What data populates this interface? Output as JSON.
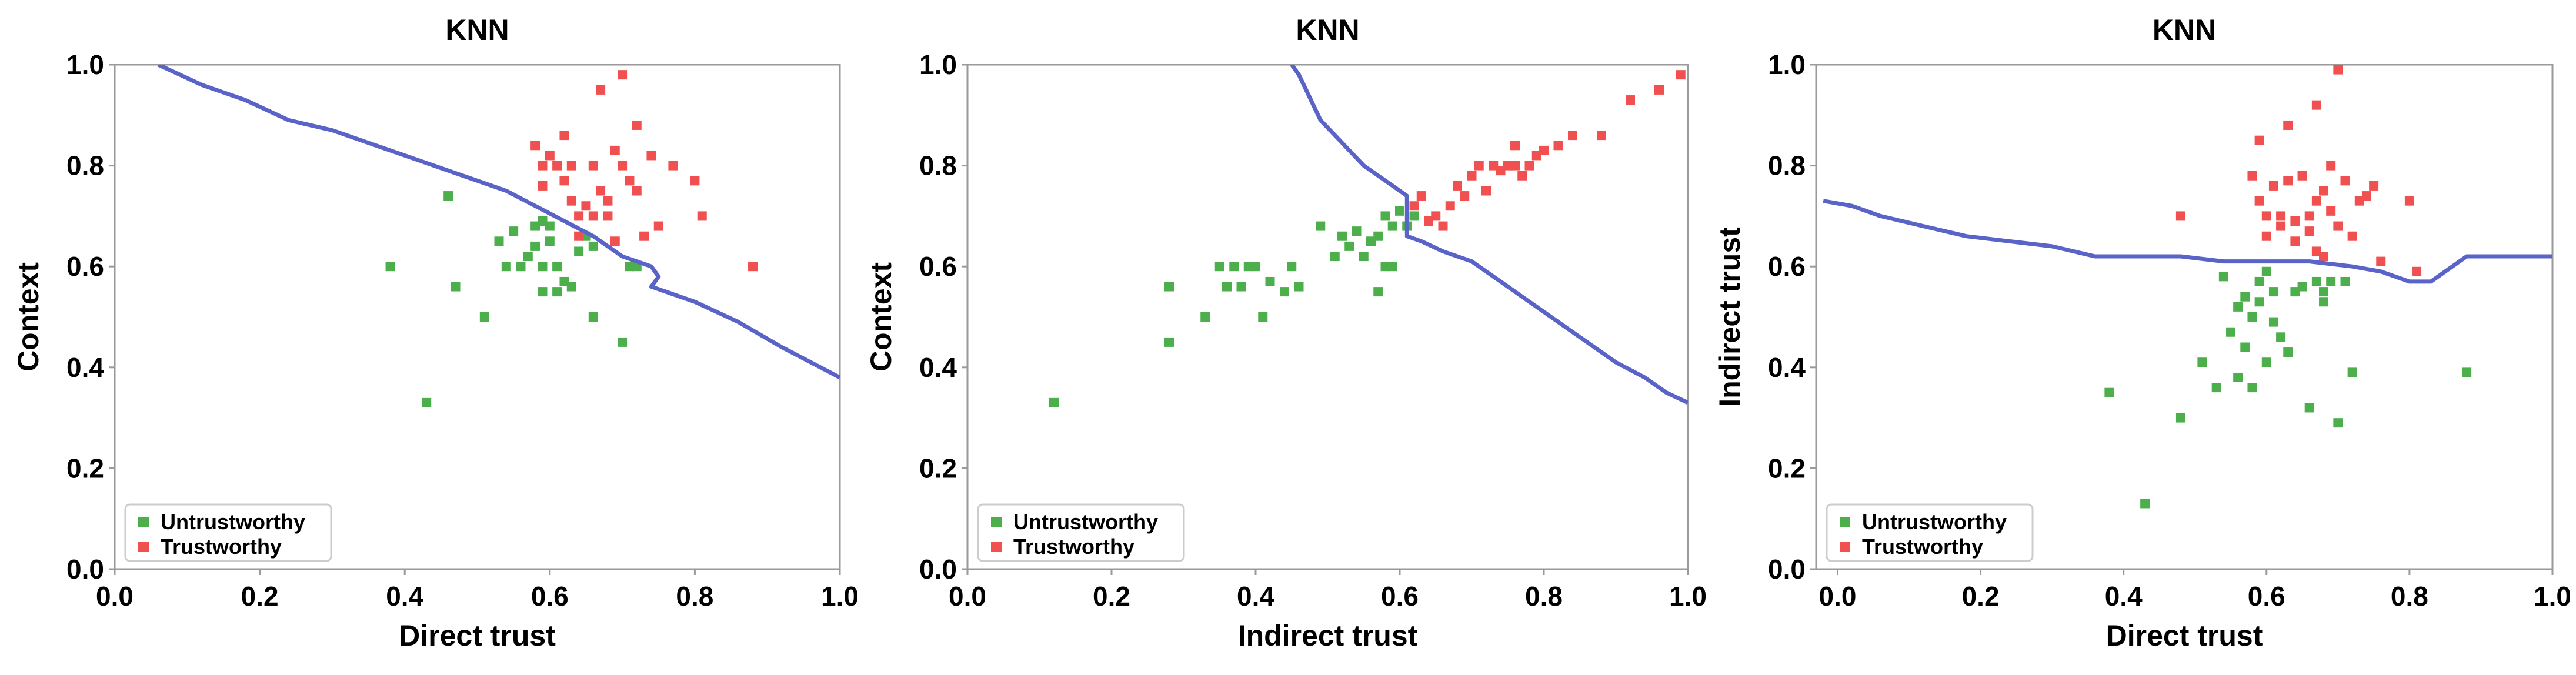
{
  "chart_data": [
    {
      "type": "scatter",
      "title": "KNN",
      "xlabel": "Direct trust",
      "ylabel": "Context",
      "xlim": [
        0.0,
        1.0
      ],
      "ylim": [
        0.0,
        1.0
      ],
      "xticks": [
        "0.0",
        "0.2",
        "0.4",
        "0.6",
        "0.8",
        "1.0"
      ],
      "yticks": [
        "0.0",
        "0.2",
        "0.4",
        "0.6",
        "0.8",
        "1.0"
      ],
      "legend": {
        "position": "bottom-left",
        "entries": [
          "Untrustworthy",
          "Trustworthy"
        ]
      },
      "series": [
        {
          "name": "Untrustworthy",
          "color": "#4caf4c",
          "points": [
            [
              0.38,
              0.6
            ],
            [
              0.43,
              0.33
            ],
            [
              0.46,
              0.74
            ],
            [
              0.47,
              0.56
            ],
            [
              0.51,
              0.5
            ],
            [
              0.53,
              0.65
            ],
            [
              0.54,
              0.6
            ],
            [
              0.55,
              0.67
            ],
            [
              0.56,
              0.6
            ],
            [
              0.57,
              0.62
            ],
            [
              0.58,
              0.68
            ],
            [
              0.58,
              0.64
            ],
            [
              0.59,
              0.69
            ],
            [
              0.59,
              0.6
            ],
            [
              0.59,
              0.55
            ],
            [
              0.6,
              0.68
            ],
            [
              0.6,
              0.65
            ],
            [
              0.61,
              0.6
            ],
            [
              0.61,
              0.55
            ],
            [
              0.62,
              0.57
            ],
            [
              0.63,
              0.56
            ],
            [
              0.64,
              0.63
            ],
            [
              0.65,
              0.66
            ],
            [
              0.66,
              0.64
            ],
            [
              0.66,
              0.5
            ],
            [
              0.7,
              0.45
            ],
            [
              0.71,
              0.6
            ],
            [
              0.72,
              0.6
            ]
          ]
        },
        {
          "name": "Trustworthy",
          "color": "#f05050",
          "points": [
            [
              0.58,
              0.84
            ],
            [
              0.59,
              0.8
            ],
            [
              0.59,
              0.76
            ],
            [
              0.6,
              0.82
            ],
            [
              0.61,
              0.8
            ],
            [
              0.62,
              0.86
            ],
            [
              0.62,
              0.77
            ],
            [
              0.63,
              0.8
            ],
            [
              0.63,
              0.73
            ],
            [
              0.64,
              0.7
            ],
            [
              0.64,
              0.66
            ],
            [
              0.65,
              0.72
            ],
            [
              0.66,
              0.7
            ],
            [
              0.66,
              0.8
            ],
            [
              0.67,
              0.95
            ],
            [
              0.67,
              0.75
            ],
            [
              0.68,
              0.73
            ],
            [
              0.68,
              0.7
            ],
            [
              0.69,
              0.83
            ],
            [
              0.69,
              0.65
            ],
            [
              0.7,
              0.98
            ],
            [
              0.7,
              0.8
            ],
            [
              0.71,
              0.77
            ],
            [
              0.72,
              0.88
            ],
            [
              0.72,
              0.75
            ],
            [
              0.73,
              0.66
            ],
            [
              0.74,
              0.82
            ],
            [
              0.75,
              0.68
            ],
            [
              0.77,
              0.8
            ],
            [
              0.8,
              0.77
            ],
            [
              0.81,
              0.7
            ],
            [
              0.88,
              0.6
            ]
          ]
        },
        {
          "name": "Decision boundary",
          "color": "#5a64c8",
          "points": [
            [
              0.06,
              1.0
            ],
            [
              0.12,
              0.96
            ],
            [
              0.18,
              0.93
            ],
            [
              0.24,
              0.89
            ],
            [
              0.3,
              0.87
            ],
            [
              0.36,
              0.84
            ],
            [
              0.42,
              0.81
            ],
            [
              0.46,
              0.79
            ],
            [
              0.5,
              0.77
            ],
            [
              0.54,
              0.75
            ],
            [
              0.58,
              0.72
            ],
            [
              0.62,
              0.69
            ],
            [
              0.66,
              0.66
            ],
            [
              0.7,
              0.62
            ],
            [
              0.74,
              0.6
            ],
            [
              0.75,
              0.58
            ],
            [
              0.74,
              0.56
            ],
            [
              0.8,
              0.53
            ],
            [
              0.86,
              0.49
            ],
            [
              0.92,
              0.44
            ],
            [
              1.0,
              0.38
            ]
          ]
        }
      ]
    },
    {
      "type": "scatter",
      "title": "KNN",
      "xlabel": "Indirect trust",
      "ylabel": "Context",
      "xlim": [
        0.0,
        1.0
      ],
      "ylim": [
        0.0,
        1.0
      ],
      "xticks": [
        "0.0",
        "0.2",
        "0.4",
        "0.6",
        "0.8",
        "1.0"
      ],
      "yticks": [
        "0.0",
        "0.2",
        "0.4",
        "0.6",
        "0.8",
        "1.0"
      ],
      "legend": {
        "position": "bottom-left",
        "entries": [
          "Untrustworthy",
          "Trustworthy"
        ]
      },
      "series": [
        {
          "name": "Untrustworthy",
          "color": "#4caf4c",
          "points": [
            [
              0.12,
              0.33
            ],
            [
              0.28,
              0.45
            ],
            [
              0.28,
              0.56
            ],
            [
              0.33,
              0.5
            ],
            [
              0.35,
              0.6
            ],
            [
              0.36,
              0.56
            ],
            [
              0.37,
              0.6
            ],
            [
              0.38,
              0.56
            ],
            [
              0.39,
              0.6
            ],
            [
              0.4,
              0.6
            ],
            [
              0.41,
              0.5
            ],
            [
              0.42,
              0.57
            ],
            [
              0.44,
              0.55
            ],
            [
              0.45,
              0.6
            ],
            [
              0.46,
              0.56
            ],
            [
              0.49,
              0.68
            ],
            [
              0.51,
              0.62
            ],
            [
              0.52,
              0.66
            ],
            [
              0.53,
              0.64
            ],
            [
              0.54,
              0.67
            ],
            [
              0.55,
              0.62
            ],
            [
              0.56,
              0.65
            ],
            [
              0.57,
              0.66
            ],
            [
              0.57,
              0.55
            ],
            [
              0.58,
              0.7
            ],
            [
              0.58,
              0.6
            ],
            [
              0.59,
              0.68
            ],
            [
              0.59,
              0.6
            ],
            [
              0.6,
              0.71
            ],
            [
              0.61,
              0.68
            ],
            [
              0.62,
              0.7
            ]
          ]
        },
        {
          "name": "Trustworthy",
          "color": "#f05050",
          "points": [
            [
              0.62,
              0.72
            ],
            [
              0.63,
              0.74
            ],
            [
              0.64,
              0.69
            ],
            [
              0.65,
              0.7
            ],
            [
              0.66,
              0.68
            ],
            [
              0.67,
              0.72
            ],
            [
              0.68,
              0.76
            ],
            [
              0.69,
              0.74
            ],
            [
              0.7,
              0.78
            ],
            [
              0.71,
              0.8
            ],
            [
              0.72,
              0.75
            ],
            [
              0.73,
              0.8
            ],
            [
              0.74,
              0.79
            ],
            [
              0.75,
              0.8
            ],
            [
              0.76,
              0.8
            ],
            [
              0.76,
              0.84
            ],
            [
              0.77,
              0.78
            ],
            [
              0.78,
              0.8
            ],
            [
              0.79,
              0.82
            ],
            [
              0.8,
              0.83
            ],
            [
              0.82,
              0.84
            ],
            [
              0.84,
              0.86
            ],
            [
              0.88,
              0.86
            ],
            [
              0.92,
              0.93
            ],
            [
              0.96,
              0.95
            ],
            [
              0.99,
              0.98
            ]
          ]
        },
        {
          "name": "Decision boundary",
          "color": "#5a64c8",
          "points": [
            [
              0.45,
              1.0
            ],
            [
              0.46,
              0.98
            ],
            [
              0.47,
              0.95
            ],
            [
              0.48,
              0.92
            ],
            [
              0.49,
              0.89
            ],
            [
              0.51,
              0.86
            ],
            [
              0.53,
              0.83
            ],
            [
              0.55,
              0.8
            ],
            [
              0.57,
              0.78
            ],
            [
              0.59,
              0.76
            ],
            [
              0.61,
              0.74
            ],
            [
              0.61,
              0.7
            ],
            [
              0.61,
              0.66
            ],
            [
              0.63,
              0.65
            ],
            [
              0.66,
              0.63
            ],
            [
              0.7,
              0.61
            ],
            [
              0.74,
              0.57
            ],
            [
              0.78,
              0.53
            ],
            [
              0.82,
              0.49
            ],
            [
              0.86,
              0.45
            ],
            [
              0.9,
              0.41
            ],
            [
              0.94,
              0.38
            ],
            [
              0.97,
              0.35
            ],
            [
              1.0,
              0.33
            ]
          ]
        }
      ]
    },
    {
      "type": "scatter",
      "title": "KNN",
      "xlabel": "Direct trust",
      "ylabel": "Indirect trust",
      "xlim": [
        0.0,
        1.0
      ],
      "ylim": [
        0.0,
        1.0
      ],
      "xticks": [
        "0.0",
        "0.2",
        "0.4",
        "0.6",
        "0.8",
        "1.0"
      ],
      "yticks": [
        "0.0",
        "0.2",
        "0.4",
        "0.6",
        "0.8",
        "1.0"
      ],
      "legend": {
        "position": "bottom-left",
        "entries": [
          "Untrustworthy",
          "Trustworthy"
        ]
      },
      "series": [
        {
          "name": "Untrustworthy",
          "color": "#4caf4c",
          "points": [
            [
              0.38,
              0.35
            ],
            [
              0.43,
              0.13
            ],
            [
              0.48,
              0.3
            ],
            [
              0.51,
              0.41
            ],
            [
              0.53,
              0.36
            ],
            [
              0.54,
              0.58
            ],
            [
              0.55,
              0.47
            ],
            [
              0.56,
              0.38
            ],
            [
              0.56,
              0.52
            ],
            [
              0.57,
              0.44
            ],
            [
              0.57,
              0.54
            ],
            [
              0.58,
              0.5
            ],
            [
              0.58,
              0.36
            ],
            [
              0.59,
              0.57
            ],
            [
              0.59,
              0.53
            ],
            [
              0.6,
              0.59
            ],
            [
              0.6,
              0.41
            ],
            [
              0.61,
              0.55
            ],
            [
              0.61,
              0.49
            ],
            [
              0.62,
              0.46
            ],
            [
              0.63,
              0.43
            ],
            [
              0.64,
              0.55
            ],
            [
              0.65,
              0.56
            ],
            [
              0.66,
              0.32
            ],
            [
              0.67,
              0.57
            ],
            [
              0.68,
              0.53
            ],
            [
              0.68,
              0.55
            ],
            [
              0.69,
              0.57
            ],
            [
              0.7,
              0.29
            ],
            [
              0.71,
              0.57
            ],
            [
              0.72,
              0.39
            ],
            [
              0.88,
              0.39
            ]
          ]
        },
        {
          "name": "Trustworthy",
          "color": "#f05050",
          "points": [
            [
              0.48,
              0.7
            ],
            [
              0.58,
              0.78
            ],
            [
              0.59,
              0.85
            ],
            [
              0.59,
              0.73
            ],
            [
              0.6,
              0.7
            ],
            [
              0.6,
              0.66
            ],
            [
              0.61,
              0.76
            ],
            [
              0.62,
              0.7
            ],
            [
              0.62,
              0.68
            ],
            [
              0.63,
              0.88
            ],
            [
              0.63,
              0.77
            ],
            [
              0.64,
              0.69
            ],
            [
              0.64,
              0.65
            ],
            [
              0.65,
              0.78
            ],
            [
              0.66,
              0.7
            ],
            [
              0.66,
              0.67
            ],
            [
              0.67,
              0.92
            ],
            [
              0.67,
              0.73
            ],
            [
              0.67,
              0.63
            ],
            [
              0.68,
              0.75
            ],
            [
              0.68,
              0.62
            ],
            [
              0.69,
              0.8
            ],
            [
              0.69,
              0.71
            ],
            [
              0.7,
              0.99
            ],
            [
              0.7,
              0.68
            ],
            [
              0.71,
              0.77
            ],
            [
              0.72,
              0.66
            ],
            [
              0.73,
              0.73
            ],
            [
              0.74,
              0.74
            ],
            [
              0.75,
              0.76
            ],
            [
              0.76,
              0.61
            ],
            [
              0.8,
              0.73
            ],
            [
              0.81,
              0.59
            ]
          ]
        },
        {
          "name": "Decision boundary",
          "color": "#5a64c8",
          "points": [
            [
              -0.02,
              0.73
            ],
            [
              0.02,
              0.72
            ],
            [
              0.06,
              0.7
            ],
            [
              0.12,
              0.68
            ],
            [
              0.18,
              0.66
            ],
            [
              0.24,
              0.65
            ],
            [
              0.3,
              0.64
            ],
            [
              0.36,
              0.62
            ],
            [
              0.42,
              0.62
            ],
            [
              0.48,
              0.62
            ],
            [
              0.54,
              0.61
            ],
            [
              0.6,
              0.61
            ],
            [
              0.66,
              0.61
            ],
            [
              0.72,
              0.6
            ],
            [
              0.76,
              0.59
            ],
            [
              0.8,
              0.57
            ],
            [
              0.83,
              0.57
            ],
            [
              0.86,
              0.6
            ],
            [
              0.88,
              0.62
            ],
            [
              0.92,
              0.62
            ],
            [
              1.0,
              0.62
            ]
          ]
        }
      ]
    }
  ]
}
